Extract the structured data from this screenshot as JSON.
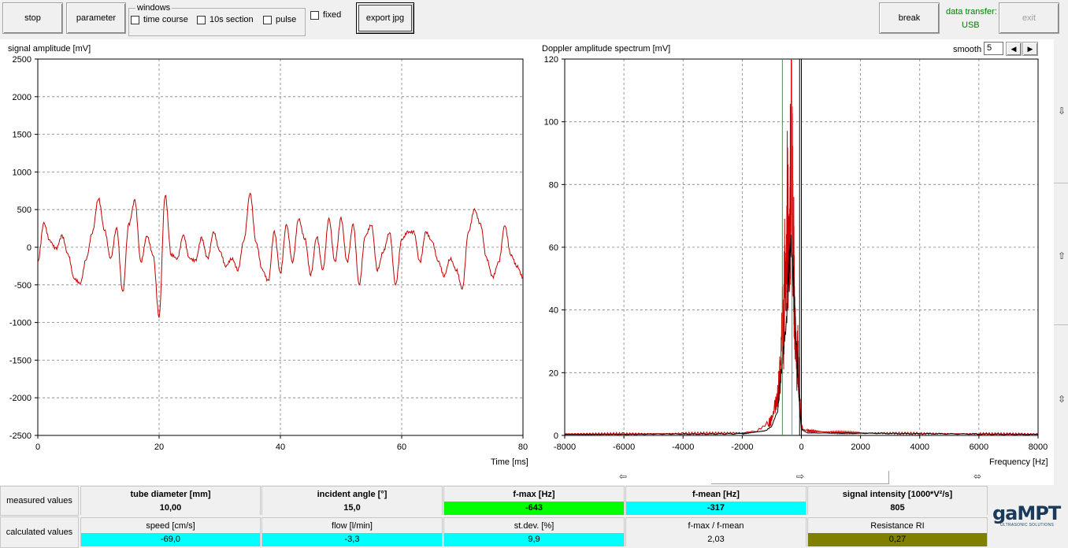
{
  "toolbar": {
    "stop": "stop",
    "parameter": "parameter",
    "windows_legend": "windows",
    "time_course": "time course",
    "section": "10s section",
    "pulse": "pulse",
    "fixed": "fixed",
    "export": "export jpg",
    "break": "break",
    "data_transfer_label": "data transfer:",
    "data_transfer_value": "USB",
    "exit": "exit"
  },
  "left_plot": {
    "ylabel": "signal amplitude [mV]",
    "xlabel": "Time [ms]"
  },
  "right_plot": {
    "ylabel": "Doppler amplitude spectrum [mV]",
    "xlabel": "Frequency [Hz]",
    "smooth_label": "smooth",
    "smooth_value": "5"
  },
  "table": {
    "measured_label": "measured values",
    "calculated_label": "calculated values",
    "measured": [
      {
        "header": "tube diameter [mm]",
        "value": "10,00",
        "color": "#f0f0f0"
      },
      {
        "header": "incident angle [°]",
        "value": "15,0",
        "color": "#f0f0f0"
      },
      {
        "header": "f-max [Hz]",
        "value": "-643",
        "color": "#00ff00"
      },
      {
        "header": "f-mean [Hz]",
        "value": "-317",
        "color": "#00ffff"
      },
      {
        "header": "signal intensity [1000*V²/s]",
        "value": "805",
        "color": "#f0f0f0"
      }
    ],
    "calculated": [
      {
        "header": "speed  [cm/s]",
        "value": "-69,0",
        "color": "#00ffff"
      },
      {
        "header": "flow [l/min]",
        "value": "-3,3",
        "color": "#00ffff"
      },
      {
        "header": "st.dev. [%]",
        "value": "9,9",
        "color": "#00ffff"
      },
      {
        "header": "f-max / f-mean",
        "value": "2,03",
        "color": "#f0f0f0"
      },
      {
        "header": "Resistance RI",
        "value": "0,27",
        "color": "#808000"
      }
    ]
  },
  "logo": {
    "name": "gaMPT",
    "tagline": "ULTRASONIC SOLUTIONS"
  },
  "chart_data": [
    {
      "type": "line",
      "title": "",
      "ylabel": "signal amplitude [mV]",
      "xlabel": "Time [ms]",
      "xlim": [
        0,
        80
      ],
      "ylim": [
        -2500,
        2500
      ],
      "xticks": [
        0,
        20,
        40,
        60,
        80
      ],
      "yticks": [
        2500,
        2000,
        1500,
        1000,
        500,
        0,
        -500,
        -1000,
        -1500,
        -2000,
        -2500
      ],
      "grid": true,
      "color": "#c00000",
      "x": [
        0,
        1,
        2,
        3,
        4,
        5,
        6,
        7,
        8,
        9,
        10,
        11,
        12,
        13,
        14,
        15,
        16,
        17,
        18,
        19,
        20,
        21,
        22,
        23,
        24,
        25,
        26,
        27,
        28,
        29,
        30,
        31,
        32,
        33,
        34,
        35,
        36,
        37,
        38,
        39,
        40,
        41,
        42,
        43,
        44,
        45,
        46,
        47,
        48,
        49,
        50,
        51,
        52,
        53,
        54,
        55,
        56,
        57,
        58,
        59,
        60,
        61,
        62,
        63,
        64,
        65,
        66,
        67,
        68,
        69,
        70,
        71,
        72,
        73,
        74,
        75,
        76,
        77,
        78,
        79,
        80
      ],
      "y": [
        -200,
        320,
        80,
        -20,
        150,
        -100,
        -420,
        -480,
        -150,
        200,
        650,
        230,
        -150,
        250,
        -600,
        300,
        620,
        -200,
        150,
        -100,
        -920,
        700,
        -100,
        -150,
        160,
        -150,
        -180,
        120,
        -150,
        200,
        -50,
        -250,
        -150,
        -300,
        100,
        720,
        60,
        -300,
        -450,
        200,
        -350,
        300,
        -200,
        380,
        120,
        -360,
        140,
        -300,
        380,
        -200,
        380,
        -200,
        300,
        -500,
        150,
        300,
        -300,
        -50,
        200,
        -500,
        100,
        200,
        200,
        -200,
        200,
        80,
        -180,
        -380,
        -150,
        -300,
        -550,
        200,
        500,
        300,
        -150,
        -400,
        -200,
        290,
        -100,
        -250,
        -400
      ]
    },
    {
      "type": "line",
      "title": "",
      "ylabel": "Doppler amplitude spectrum [mV]",
      "xlabel": "Frequency [Hz]",
      "xlim": [
        -8000,
        8000
      ],
      "ylim": [
        0,
        120
      ],
      "xticks": [
        -8000,
        -6000,
        -4000,
        -2000,
        0,
        2000,
        4000,
        6000,
        8000
      ],
      "yticks": [
        0,
        20,
        40,
        60,
        80,
        100,
        120
      ],
      "grid": true,
      "series": [
        {
          "color": "#d00000",
          "x": [
            -8000,
            -6000,
            -4000,
            -2000,
            -1500,
            -1100,
            -1000,
            -900,
            -800,
            -700,
            -650,
            -600,
            -560,
            -520,
            -480,
            -440,
            -400,
            -380,
            -360,
            -340,
            -320,
            -300,
            -280,
            -260,
            -240,
            -200,
            -160,
            -120,
            -80,
            -40,
            0,
            40,
            200,
            1000,
            2000,
            4000,
            6000,
            8000
          ],
          "y": [
            0.5,
            0.5,
            0.6,
            0.8,
            1.5,
            4,
            5,
            9,
            12,
            22,
            40,
            32,
            55,
            45,
            72,
            60,
            58,
            80,
            70,
            102,
            65,
            85,
            55,
            60,
            40,
            30,
            20,
            28,
            15,
            10,
            3,
            2,
            1.5,
            1,
            0.8,
            0.6,
            0.5,
            0.4
          ]
        },
        {
          "color": "#000000",
          "x": [
            -8000,
            -2000,
            -1200,
            -1000,
            -800,
            -700,
            -600,
            -500,
            -450,
            -400,
            -350,
            -300,
            -250,
            -200,
            -150,
            -100,
            -50,
            0,
            200,
            8000
          ],
          "y": [
            0.3,
            0.5,
            1.5,
            3,
            8,
            18,
            28,
            36,
            48,
            58,
            62,
            55,
            45,
            35,
            25,
            15,
            8,
            2,
            0.8,
            0.3
          ]
        }
      ],
      "markers": [
        {
          "x": -643,
          "color": "#00c000"
        },
        {
          "x": -317,
          "color": "#00c0c0"
        },
        {
          "x": 0,
          "color": "#000000"
        }
      ]
    }
  ]
}
